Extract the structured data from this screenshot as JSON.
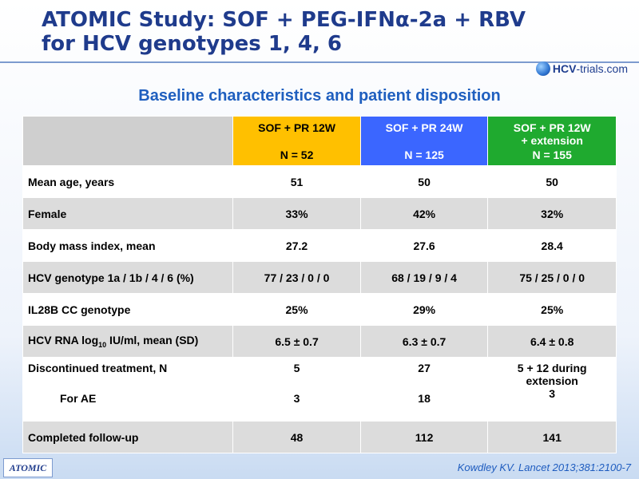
{
  "title": {
    "line1": "ATOMIC Study: SOF + PEG-IFNα-2a + RBV",
    "line2": "for HCV genotypes 1, 4, 6"
  },
  "logo": {
    "brand": "HCV",
    "rest": "-trials.com"
  },
  "subtitle": "Baseline characteristics and patient disposition",
  "table": {
    "headers": [
      {
        "label": "SOF + PR 12W",
        "label2": "",
        "n": "N = 52",
        "color": "#ffc000"
      },
      {
        "label": "SOF + PR 24W",
        "label2": "",
        "n": "N = 125",
        "color": "#3b66ff"
      },
      {
        "label": "SOF + PR 12W",
        "label2": "+ extension",
        "n": "N = 155",
        "color": "#1faa2f"
      }
    ],
    "rows": [
      {
        "label": "Mean age, years",
        "values": [
          "51",
          "50",
          "50"
        ]
      },
      {
        "label": "Female",
        "values": [
          "33%",
          "42%",
          "32%"
        ]
      },
      {
        "label": "Body mass index, mean",
        "values": [
          "27.2",
          "27.6",
          "28.4"
        ]
      },
      {
        "label": "HCV genotype 1a / 1b / 4 / 6 (%)",
        "values": [
          "77 / 23 / 0 / 0",
          "68 / 19 / 9 / 4",
          "75 / 25 / 0 / 0"
        ]
      },
      {
        "label": "IL28B CC genotype",
        "values": [
          "25%",
          "29%",
          "25%"
        ]
      },
      {
        "label_pre": "HCV RNA log",
        "label_sub": "10",
        "label_post": " IU/ml, mean (SD)",
        "values": [
          "6.5 ± 0.7",
          "6.3 ± 0.7",
          "6.4 ± 0.8"
        ]
      },
      {
        "label": "Discontinued treatment, N",
        "sublabel": "For AE",
        "values": [
          "5",
          "27",
          "5 + 12 during extension"
        ],
        "subvalues": [
          "3",
          "18",
          "3"
        ]
      },
      {
        "label": "Completed follow-up",
        "values": [
          "48",
          "112",
          "141"
        ]
      }
    ]
  },
  "badge": "ATOMIC",
  "citation": "Kowdley KV. Lancet 2013;381:2100-7"
}
